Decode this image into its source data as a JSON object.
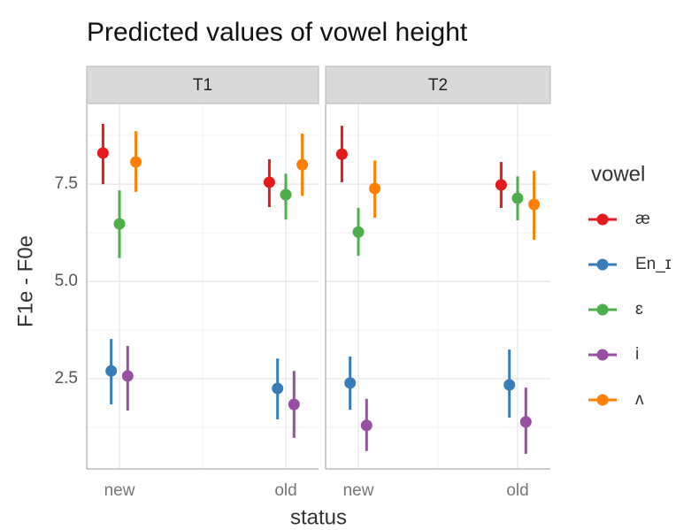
{
  "chart_data": {
    "type": "pointrange",
    "title": "Predicted values of vowel height",
    "xlabel": "status",
    "ylabel": "F1e - F0e",
    "legend_title": "vowel",
    "categories": [
      "new",
      "old"
    ],
    "ylim": [
      0.18,
      9.55
    ],
    "yticks": [
      2.5,
      {
        "value": 5,
        "label": "5.0"
      },
      7.5
    ],
    "yminor": [
      1.25,
      3.75,
      6.25,
      8.75
    ],
    "grid": true,
    "series": [
      {
        "name": "æ",
        "color": "#e41a1c"
      },
      {
        "name": "En_ɪ",
        "color": "#377eb8"
      },
      {
        "name": "ɛ",
        "color": "#4daf4a"
      },
      {
        "name": "i",
        "color": "#984ea3"
      },
      {
        "name": "ʌ",
        "color": "#ff7f00"
      }
    ],
    "facets": [
      {
        "label": "T1",
        "series": [
          {
            "values": [
              8.3,
              7.55
            ],
            "lower": [
              7.5,
              6.91
            ],
            "upper": [
              9.05,
              8.14
            ]
          },
          {
            "values": [
              2.7,
              2.25
            ],
            "lower": [
              1.84,
              1.45
            ],
            "upper": [
              3.52,
              3.02
            ]
          },
          {
            "values": [
              6.48,
              7.23
            ],
            "lower": [
              5.6,
              6.59
            ],
            "upper": [
              7.34,
              7.77
            ]
          },
          {
            "values": [
              2.57,
              1.84
            ],
            "lower": [
              1.68,
              0.98
            ],
            "upper": [
              3.34,
              2.7
            ]
          },
          {
            "values": [
              8.07,
              8.0
            ],
            "lower": [
              7.3,
              7.2
            ],
            "upper": [
              8.86,
              8.8
            ]
          }
        ]
      },
      {
        "label": "T2",
        "series": [
          {
            "values": [
              8.27,
              7.48
            ],
            "lower": [
              7.55,
              6.89
            ],
            "upper": [
              9.0,
              8.07
            ]
          },
          {
            "values": [
              2.39,
              2.34
            ],
            "lower": [
              1.7,
              1.5
            ],
            "upper": [
              3.07,
              3.25
            ]
          },
          {
            "values": [
              6.27,
              7.14
            ],
            "lower": [
              5.66,
              6.57
            ],
            "upper": [
              6.89,
              7.7
            ]
          },
          {
            "values": [
              1.3,
              1.39
            ],
            "lower": [
              0.64,
              0.57
            ],
            "upper": [
              1.98,
              2.27
            ]
          },
          {
            "values": [
              7.39,
              6.98
            ],
            "lower": [
              6.64,
              6.07
            ],
            "upper": [
              8.11,
              7.84
            ]
          }
        ]
      }
    ]
  }
}
